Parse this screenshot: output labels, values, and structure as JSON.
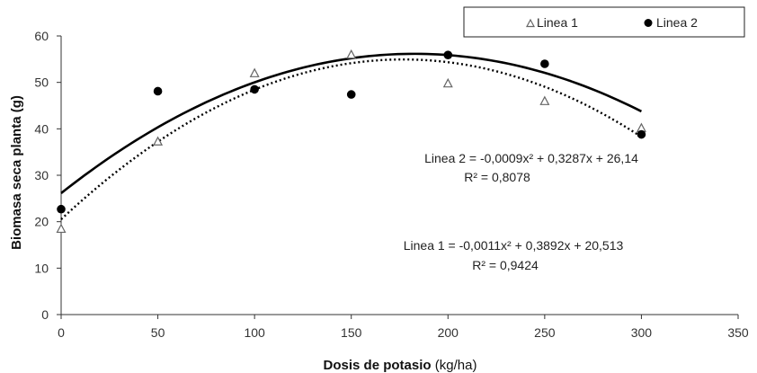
{
  "chart_data": {
    "type": "scatter",
    "xlabel_bold": "Dosis de potasio",
    "xlabel_unit": "(kg/ha)",
    "ylabel": "Biomasa seca planta (g)",
    "xlim": [
      0,
      350
    ],
    "ylim": [
      0,
      60
    ],
    "x_ticks": [
      0,
      50,
      100,
      150,
      200,
      250,
      300,
      350
    ],
    "y_ticks": [
      0,
      10,
      20,
      30,
      40,
      50,
      60
    ],
    "grid": false,
    "legend_position": "top-right",
    "series": [
      {
        "name": "Linea 1",
        "marker": "triangle-open",
        "color": "#666666",
        "x": [
          0,
          50,
          100,
          150,
          200,
          250,
          300
        ],
        "y": [
          18.5,
          37.3,
          52.0,
          56.0,
          49.8,
          46.0,
          40.2
        ],
        "trendline": {
          "style": "dotted",
          "coefficients": {
            "a": -0.0011,
            "b": 0.3892,
            "c": 20.513
          },
          "equation_label": "Linea 1 = -0,0011x² + 0,3892x + 20,513",
          "r2_label": "R² = 0,9424"
        }
      },
      {
        "name": "Linea 2",
        "marker": "circle-filled",
        "color": "#000000",
        "x": [
          0,
          50,
          100,
          150,
          200,
          250,
          300
        ],
        "y": [
          22.7,
          48.1,
          48.5,
          47.4,
          55.9,
          54.0,
          38.8
        ],
        "trendline": {
          "style": "solid",
          "coefficients": {
            "a": -0.0009,
            "b": 0.3287,
            "c": 26.14
          },
          "equation_label": "Linea 2 = -0,0009x² + 0,3287x + 26,14",
          "r2_label": "R² = 0,8078"
        }
      }
    ]
  }
}
